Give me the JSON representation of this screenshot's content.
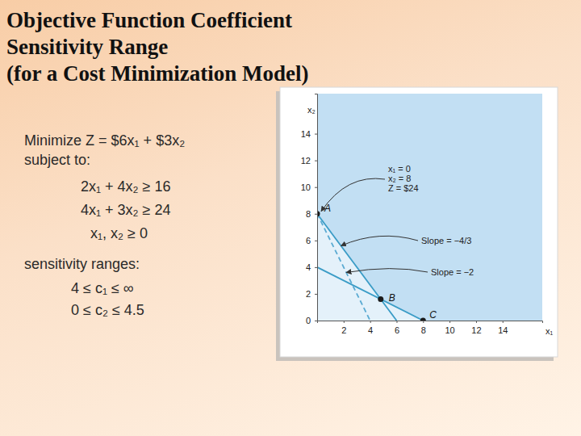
{
  "slide": {
    "title": [
      "Objective Function Coefficient",
      "Sensitivity Range",
      "(for a Cost Minimization Model)"
    ],
    "objective": "Minimize Z = $6x₁ + $3x₂",
    "constraints_heading": "subject to:",
    "constraints": [
      "2x₁ + 4x₂ ≥ 16",
      "4x₁ + 3x₂ ≥ 24",
      "x₁, x₂ ≥ 0"
    ],
    "ranges_heading": "sensitivity ranges:",
    "ranges": [
      "4 ≤ c₁ ≤ ∞",
      "0 ≤ c₂ ≤ 4.5"
    ]
  },
  "chart_data": {
    "type": "line",
    "x_label": "x₁",
    "y_label": "x₂",
    "xlim": [
      0,
      17
    ],
    "ylim": [
      0,
      17
    ],
    "xticks": [
      2,
      4,
      6,
      8,
      10,
      12,
      14
    ],
    "yticks": [
      0,
      2,
      4,
      6,
      8,
      10,
      12,
      14
    ],
    "grid": false,
    "series": [
      {
        "color": "#3a9cc6",
        "line_style": "solid",
        "x": [
          0,
          8
        ],
        "values": [
          4,
          0
        ]
      },
      {
        "color": "#3a9cc6",
        "line_style": "solid",
        "x": [
          0,
          6
        ],
        "values": [
          8,
          0
        ]
      },
      {
        "color": "#5aaad2",
        "line_style": "dashed",
        "x": [
          0,
          4
        ],
        "values": [
          8,
          0
        ]
      }
    ],
    "points": [
      {
        "label": "A",
        "x": 0,
        "y": 8
      },
      {
        "label": "B",
        "x": 4.8,
        "y": 1.6
      },
      {
        "label": "C",
        "x": 8,
        "y": 0
      }
    ],
    "annotations": [
      {
        "lines": [
          "x₁ = 0",
          "x₂ = 8",
          "Z = $24"
        ]
      },
      {
        "lines": [
          "Slope = −4/3"
        ]
      },
      {
        "lines": [
          "Slope = −2"
        ]
      }
    ]
  }
}
